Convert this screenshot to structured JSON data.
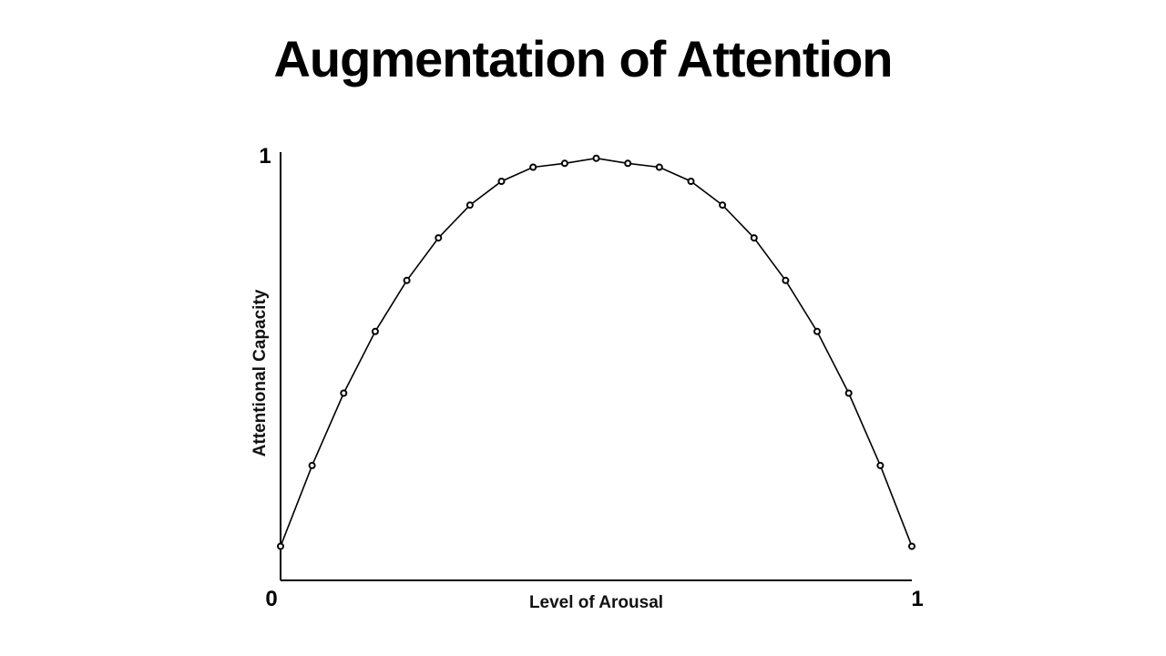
{
  "slide": {
    "title": "Augmentation of Attention"
  },
  "chart_data": {
    "type": "line",
    "title": "",
    "xlabel": "Level of Arousal",
    "ylabel": "Attentional Capacity",
    "xlim": [
      0,
      1
    ],
    "ylim": [
      0,
      1
    ],
    "x_ticks": [
      "0",
      "1"
    ],
    "y_ticks": [
      "1"
    ],
    "grid": false,
    "legend": "none",
    "line_color": "#000000",
    "marker": "open-circle",
    "series": [
      {
        "x": [
          0,
          0.05,
          0.1,
          0.15,
          0.2,
          0.25,
          0.3,
          0.35,
          0.4,
          0.45,
          0.5,
          0.55,
          0.6,
          0.65,
          0.7,
          0.75,
          0.8,
          0.85,
          0.9,
          0.95,
          1
        ],
        "values": [
          0.08,
          0.27,
          0.44,
          0.585,
          0.705,
          0.805,
          0.882,
          0.938,
          0.971,
          0.98,
          0.992,
          0.98,
          0.971,
          0.938,
          0.882,
          0.805,
          0.705,
          0.585,
          0.44,
          0.27,
          0.08
        ]
      }
    ]
  }
}
